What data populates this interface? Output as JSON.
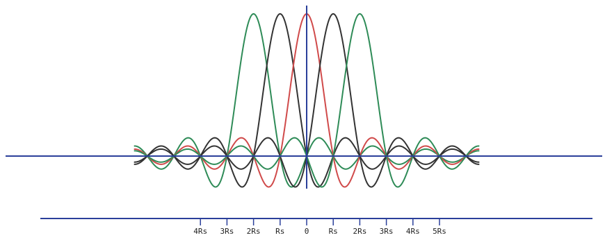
{
  "chart_data": {
    "type": "line",
    "title": "",
    "xlabel": "",
    "ylabel": "",
    "x_unit": "Rs",
    "xlim": [
      -6.5,
      6.5
    ],
    "ylim": [
      -0.3,
      1.0
    ],
    "grid": false,
    "legend": "none",
    "x_tick_labels": [
      "4Rs",
      "3Rs",
      "2Rs",
      "Rs",
      "0",
      "Rs",
      "2Rs",
      "3Rs",
      "4Rs",
      "5Rs"
    ],
    "x_tick_values": [
      -4,
      -3,
      -2,
      -1,
      0,
      1,
      2,
      3,
      4,
      5
    ],
    "series": [
      {
        "color": "#2e8b57",
        "function": "sinc",
        "center": -2
      },
      {
        "color": "#333333",
        "function": "sinc",
        "center": -1
      },
      {
        "color": "#d04a4a",
        "function": "sinc",
        "center": 0
      },
      {
        "color": "#333333",
        "function": "sinc",
        "center": 1
      },
      {
        "color": "#2e8b57",
        "function": "sinc",
        "center": 2
      }
    ],
    "axis_color": "#2a3f9a"
  }
}
